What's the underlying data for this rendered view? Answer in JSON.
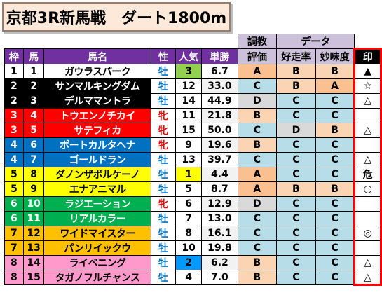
{
  "title": "京都3R新馬戦　ダート1800m",
  "headers": {
    "chokyo_group": "調教",
    "chokyo": "評価",
    "data_group": "データ",
    "kosou": "好走率",
    "myoumi": "妙味度",
    "waku": "枠",
    "uma": "馬",
    "name": "馬名",
    "sex": "性",
    "ninki": "人気",
    "tansho": "単勝",
    "mark": "印"
  },
  "colors": {
    "header_purple": "#7030a0",
    "header_lavender": "#ccc0da",
    "grade_A": "#fac090",
    "grade_B": "#fbd4b4",
    "grade_C": "#b7dee8",
    "grade_D": "#d9d9d9",
    "mark_border": "#ff0000"
  },
  "rows": [
    {
      "waku": "1",
      "uma": "1",
      "name": "ガウラスパーク",
      "sex": "牡",
      "ninki": "3",
      "tansho": "6.7",
      "chokyo": "A",
      "kosou": "B",
      "myoumi": "B",
      "mark": "▲",
      "waku_bg": "#ffffff",
      "waku_fg": "#000000",
      "ninki_bg": "#92d050"
    },
    {
      "waku": "2",
      "uma": "2",
      "name": "サンマルキングダム",
      "sex": "牡",
      "ninki": "12",
      "tansho": "33.0",
      "chokyo": "C",
      "kosou": "B",
      "myoumi": "A",
      "mark": "☆",
      "waku_bg": "#000000",
      "waku_fg": "#ffffff",
      "ninki_bg": ""
    },
    {
      "waku": "2",
      "uma": "3",
      "name": "デルママントラ",
      "sex": "牡",
      "ninki": "14",
      "tansho": "44.9",
      "chokyo": "D",
      "kosou": "C",
      "myoumi": "C",
      "mark": "△",
      "waku_bg": "#000000",
      "waku_fg": "#ffffff",
      "ninki_bg": ""
    },
    {
      "waku": "3",
      "uma": "4",
      "name": "トウエンノチカイ",
      "sex": "牝",
      "ninki": "11",
      "tansho": "21.8",
      "chokyo": "B",
      "kosou": "C",
      "myoumi": "C",
      "mark": "",
      "waku_bg": "#ff0000",
      "waku_fg": "#ffffff",
      "ninki_bg": ""
    },
    {
      "waku": "3",
      "uma": "5",
      "name": "サテフィカ",
      "sex": "牝",
      "ninki": "15",
      "tansho": "50.0",
      "chokyo": "C",
      "kosou": "D",
      "myoumi": "B",
      "mark": "△",
      "waku_bg": "#ff0000",
      "waku_fg": "#ffffff",
      "ninki_bg": ""
    },
    {
      "waku": "4",
      "uma": "6",
      "name": "ポートカルタヘナ",
      "sex": "牝",
      "ninki": "9",
      "tansho": "19.6",
      "chokyo": "B",
      "kosou": "C",
      "myoumi": "C",
      "mark": "",
      "waku_bg": "#0070c0",
      "waku_fg": "#ffffff",
      "ninki_bg": ""
    },
    {
      "waku": "4",
      "uma": "7",
      "name": "ゴールドラン",
      "sex": "牡",
      "ninki": "13",
      "tansho": "39.7",
      "chokyo": "C",
      "kosou": "C",
      "myoumi": "C",
      "mark": "△",
      "waku_bg": "#0070c0",
      "waku_fg": "#ffffff",
      "ninki_bg": ""
    },
    {
      "waku": "5",
      "uma": "8",
      "name": "ダノンザボルケーノ",
      "sex": "牡",
      "ninki": "1",
      "tansho": "4.4",
      "chokyo": "A",
      "kosou": "C",
      "myoumi": "C",
      "mark": "危",
      "waku_bg": "#ffff00",
      "waku_fg": "#000000",
      "ninki_bg": "#ffff00"
    },
    {
      "waku": "5",
      "uma": "9",
      "name": "エナアニマル",
      "sex": "牡",
      "ninki": "5",
      "tansho": "8.7",
      "chokyo": "A",
      "kosou": "B",
      "myoumi": "B",
      "mark": "○",
      "waku_bg": "#ffff00",
      "waku_fg": "#000000",
      "ninki_bg": ""
    },
    {
      "waku": "6",
      "uma": "10",
      "name": "ラジエーション",
      "sex": "牝",
      "ninki": "6",
      "tansho": "12.9",
      "chokyo": "D",
      "kosou": "C",
      "myoumi": "C",
      "mark": "",
      "waku_bg": "#00b050",
      "waku_fg": "#ffffff",
      "ninki_bg": ""
    },
    {
      "waku": "6",
      "uma": "11",
      "name": "リアルカラー",
      "sex": "牡",
      "ninki": "7",
      "tansho": "13.0",
      "chokyo": "C",
      "kosou": "C",
      "myoumi": "C",
      "mark": "",
      "waku_bg": "#00b050",
      "waku_fg": "#ffffff",
      "ninki_bg": ""
    },
    {
      "waku": "7",
      "uma": "12",
      "name": "ワイドマイスター",
      "sex": "牡",
      "ninki": "8",
      "tansho": "16.1",
      "chokyo": "C",
      "kosou": "C",
      "myoumi": "C",
      "mark": "◎",
      "waku_bg": "#ffc000",
      "waku_fg": "#000000",
      "ninki_bg": ""
    },
    {
      "waku": "7",
      "uma": "13",
      "name": "パンリイックウ",
      "sex": "牡",
      "ninki": "10",
      "tansho": "19.8",
      "chokyo": "C",
      "kosou": "C",
      "myoumi": "C",
      "mark": "",
      "waku_bg": "#ffc000",
      "waku_fg": "#000000",
      "ninki_bg": ""
    },
    {
      "waku": "8",
      "uma": "14",
      "name": "ライベニング",
      "sex": "牡",
      "ninki": "2",
      "tansho": "6.2",
      "chokyo": "B",
      "kosou": "C",
      "myoumi": "C",
      "mark": "△",
      "waku_bg": "#ff99cc",
      "waku_fg": "#000000",
      "ninki_bg": "#0099ff"
    },
    {
      "waku": "8",
      "uma": "15",
      "name": "タガノフルチャンス",
      "sex": "牡",
      "ninki": "4",
      "tansho": "7.0",
      "chokyo": "B",
      "kosou": "C",
      "myoumi": "C",
      "mark": "△",
      "waku_bg": "#ff99cc",
      "waku_fg": "#000000",
      "ninki_bg": ""
    }
  ]
}
